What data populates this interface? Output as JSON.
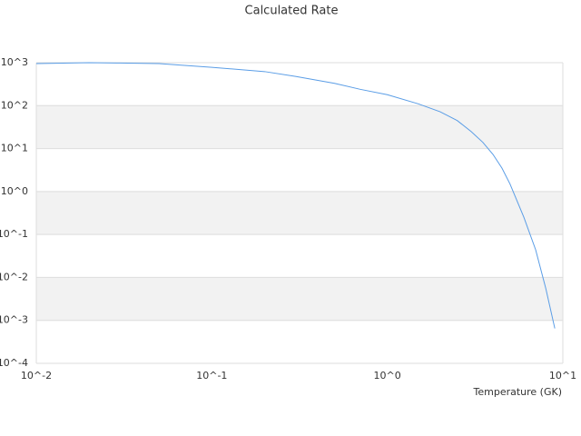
{
  "chart_data": {
    "type": "line",
    "title": "Calculated Rate",
    "x_label": "Temperature (GK)",
    "xscale": "log",
    "yscale": "log",
    "grid": true,
    "xlim": [
      0.01,
      10
    ],
    "ylim": [
      0.0001,
      1000
    ],
    "xticks": [
      {
        "value": 0.01,
        "label": "10^-2"
      },
      {
        "value": 0.1,
        "label": "10^-1"
      },
      {
        "value": 1,
        "label": "10^0"
      },
      {
        "value": 10,
        "label": "10^1"
      }
    ],
    "yticks": [
      {
        "value": 0.0001,
        "label": "10^-4"
      },
      {
        "value": 0.001,
        "label": "10^-3"
      },
      {
        "value": 0.01,
        "label": "10^-2"
      },
      {
        "value": 0.1,
        "label": "10^-1"
      },
      {
        "value": 1,
        "label": "10^0"
      },
      {
        "value": 10,
        "label": "10^1"
      },
      {
        "value": 100,
        "label": "10^2"
      },
      {
        "value": 1000,
        "label": "10^3"
      }
    ],
    "x": [
      0.01,
      0.02,
      0.03,
      0.05,
      0.1,
      0.2,
      0.3,
      0.5,
      0.7,
      1,
      1.5,
      2,
      2.5,
      3,
      3.5,
      4,
      4.5,
      5,
      6,
      7,
      8,
      9
    ],
    "series": [
      {
        "color": "#5a9de6",
        "values": [
          950,
          1000,
          980,
          950,
          780,
          620,
          480,
          330,
          240,
          180,
          110,
          72,
          45,
          25,
          14,
          7.3,
          3.5,
          1.5,
          0.25,
          0.044,
          0.0055,
          0.00065
        ]
      }
    ]
  }
}
